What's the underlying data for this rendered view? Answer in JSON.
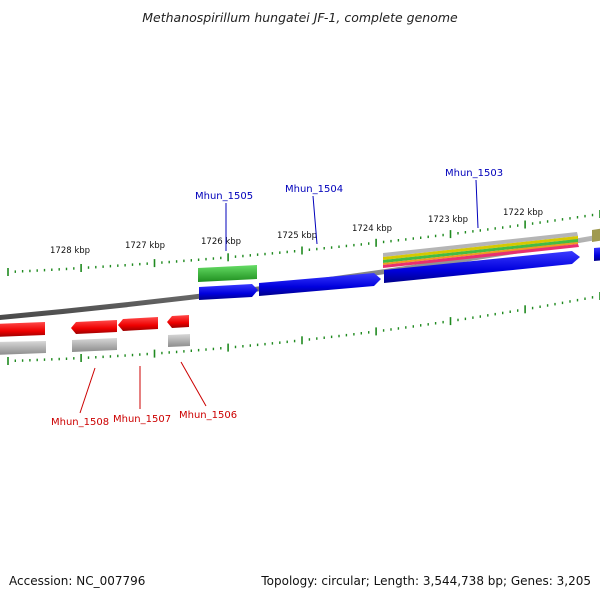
{
  "title": "Methanospirillum hungatei JF-1, complete genome",
  "footer": {
    "accession": "Accession: NC_007796",
    "summary": "Topology: circular; Length: 3,544,738 bp; Genes: 3,205"
  },
  "colors": {
    "backbone": "#8a8a8a",
    "tick": "#1f8a1f",
    "forward_gene": "#0000dd",
    "reverse_gene": "#ee0000",
    "gene_label_forward": "#0000bb",
    "gene_label_reverse": "#cc0000",
    "cog_green": "#33bb33",
    "cog_gray": "#b0b0b0",
    "cog_olive": "#a09a50",
    "cog_yellow": "#d6c800",
    "cog_orange": "#f09a20",
    "cog_pink": "#e83070"
  },
  "ruler": {
    "unit": "kbp",
    "labels": [
      "1728 kbp",
      "1727 kbp",
      "1726 kbp",
      "1725 kbp",
      "1724 kbp",
      "1723 kbp",
      "1722 kbp"
    ]
  },
  "genes": {
    "forward": [
      "Mhun_1505",
      "Mhun_1504",
      "Mhun_1503"
    ],
    "reverse": [
      "Mhun_1508",
      "Mhun_1507",
      "Mhun_1506"
    ]
  }
}
